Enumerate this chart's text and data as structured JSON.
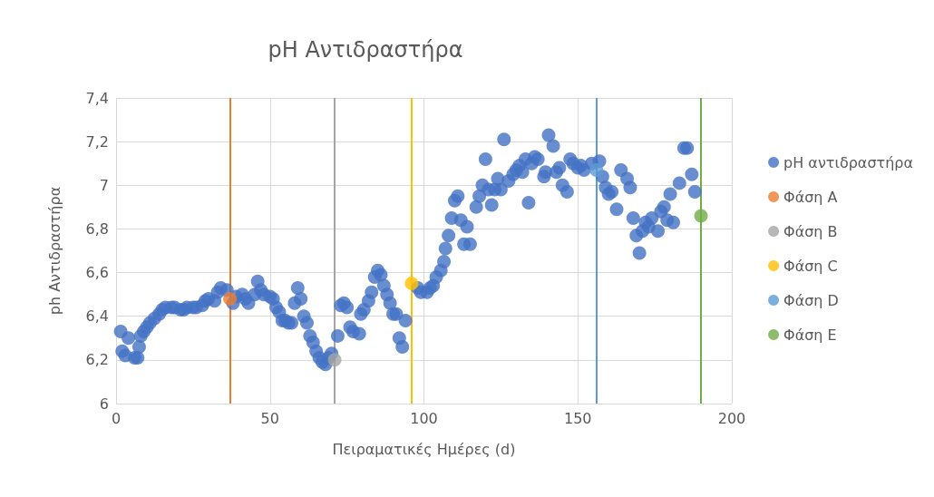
{
  "chart_data": {
    "type": "scatter",
    "title": "pH Αντιδραστήρα",
    "xlabel": "Πειραματικές Ημέρες (d)",
    "ylabel": "ph Αντιδραστήρα",
    "xlim": [
      0,
      200
    ],
    "xticks": [
      0,
      50,
      100,
      150,
      200
    ],
    "ylim": [
      6,
      7.4
    ],
    "yticks": [
      {
        "value": 6,
        "label": "6"
      },
      {
        "value": 6.2,
        "label": "6,2"
      },
      {
        "value": 6.4,
        "label": "6,4"
      },
      {
        "value": 6.6,
        "label": "6,6"
      },
      {
        "value": 6.8,
        "label": "6,8"
      },
      {
        "value": 7,
        "label": "7"
      },
      {
        "value": 7.2,
        "label": "7,2"
      },
      {
        "value": 7.4,
        "label": "7,4"
      }
    ],
    "grid": true,
    "legend": "right",
    "marker": "circle",
    "series": [
      {
        "name": "pH αντιδραστήρα",
        "color": "#4472c4",
        "x": [
          1.5,
          2,
          3,
          4,
          6,
          7,
          7.5,
          8,
          9,
          10,
          11,
          12.5,
          14,
          15,
          16,
          18,
          19,
          21,
          22,
          23,
          25,
          26,
          28,
          29,
          30,
          32,
          33,
          34,
          36,
          38,
          39,
          41,
          42,
          43,
          45,
          46,
          47,
          48,
          50,
          51,
          52,
          53,
          54,
          55,
          56,
          57,
          58,
          59,
          60,
          61,
          62,
          63,
          64,
          65,
          66,
          67,
          68,
          69,
          70,
          72,
          73,
          74,
          75,
          76,
          77,
          79,
          79.5,
          80.5,
          82,
          83,
          84,
          85,
          86,
          87,
          88,
          89,
          90,
          91,
          92,
          93,
          94,
          98,
          99,
          101,
          102,
          103,
          104,
          105.5,
          106.5,
          107,
          108,
          109,
          110,
          111,
          112,
          113,
          114,
          115,
          117,
          118,
          119,
          120,
          121,
          122,
          123,
          124,
          125,
          126,
          127.5,
          129,
          130,
          131,
          132,
          133,
          134,
          135,
          136,
          137,
          139,
          139.5,
          140.5,
          142,
          143,
          144,
          145,
          146.5,
          147.5,
          148.5,
          150,
          151,
          152,
          154.5,
          157,
          158,
          159,
          160,
          161,
          162.6,
          164,
          166,
          167,
          168,
          169,
          170,
          171,
          172,
          173,
          174,
          176,
          177,
          178,
          179,
          180,
          181,
          183,
          184.5,
          185.5,
          187,
          188
        ],
        "values": [
          6.33,
          6.24,
          6.22,
          6.3,
          6.21,
          6.21,
          6.26,
          6.31,
          6.33,
          6.35,
          6.37,
          6.39,
          6.41,
          6.43,
          6.44,
          6.44,
          6.44,
          6.43,
          6.43,
          6.44,
          6.44,
          6.44,
          6.45,
          6.47,
          6.48,
          6.47,
          6.51,
          6.53,
          6.52,
          6.46,
          6.49,
          6.5,
          6.48,
          6.46,
          6.5,
          6.56,
          6.52,
          6.5,
          6.49,
          6.48,
          6.44,
          6.42,
          6.38,
          6.38,
          6.37,
          6.37,
          6.46,
          6.53,
          6.48,
          6.4,
          6.37,
          6.31,
          6.28,
          6.24,
          6.21,
          6.19,
          6.18,
          6.21,
          6.23,
          6.31,
          6.45,
          6.46,
          6.44,
          6.35,
          6.33,
          6.32,
          6.41,
          6.43,
          6.47,
          6.51,
          6.58,
          6.61,
          6.59,
          6.54,
          6.5,
          6.46,
          6.41,
          6.41,
          6.3,
          6.26,
          6.38,
          6.53,
          6.51,
          6.51,
          6.53,
          6.54,
          6.58,
          6.61,
          6.65,
          6.71,
          6.77,
          6.85,
          6.93,
          6.95,
          6.84,
          6.73,
          6.81,
          6.73,
          6.9,
          6.95,
          7,
          7.12,
          6.98,
          6.91,
          6.98,
          7.03,
          6.98,
          7.21,
          7.02,
          7.05,
          7.07,
          7.09,
          7.06,
          7.12,
          6.92,
          7.1,
          7.13,
          7.12,
          7.04,
          7.06,
          7.23,
          7.18,
          7.06,
          7.08,
          7,
          6.97,
          7.12,
          7.1,
          7.08,
          7.09,
          7.07,
          7.1,
          7.11,
          7.04,
          6.99,
          6.96,
          6.97,
          6.89,
          7.07,
          7.03,
          6.99,
          6.85,
          6.77,
          6.69,
          6.79,
          6.83,
          6.81,
          6.85,
          6.79,
          6.88,
          6.9,
          6.84,
          6.96,
          6.83,
          7.01,
          7.17,
          7.17,
          7.05,
          6.97
        ]
      },
      {
        "name": "Φάση A",
        "color": "#ed7d31",
        "x": [
          37
        ],
        "values": [
          6.48
        ]
      },
      {
        "name": "Φάση B",
        "color": "#a5a5a5",
        "x": [
          71
        ],
        "values": [
          6.2
        ]
      },
      {
        "name": "Φάση C",
        "color": "#ffc000",
        "x": [
          96
        ],
        "values": [
          6.55
        ]
      },
      {
        "name": "Φάση D",
        "color": "#5b9bd5",
        "x": [
          156
        ],
        "values": [
          7.07
        ]
      },
      {
        "name": "Φάση E",
        "color": "#70ad47",
        "x": [
          190
        ],
        "values": [
          6.86
        ]
      }
    ],
    "ref_lines": [
      {
        "axis": "x",
        "value": 37,
        "color": "#ed7d31"
      },
      {
        "axis": "x",
        "value": 71,
        "color": "#a5a5a5"
      },
      {
        "axis": "x",
        "value": 96,
        "color": "#ffc000"
      },
      {
        "axis": "x",
        "value": 156,
        "color": "#5b9bd5"
      },
      {
        "axis": "x",
        "value": 190,
        "color": "#70ad47"
      }
    ]
  }
}
